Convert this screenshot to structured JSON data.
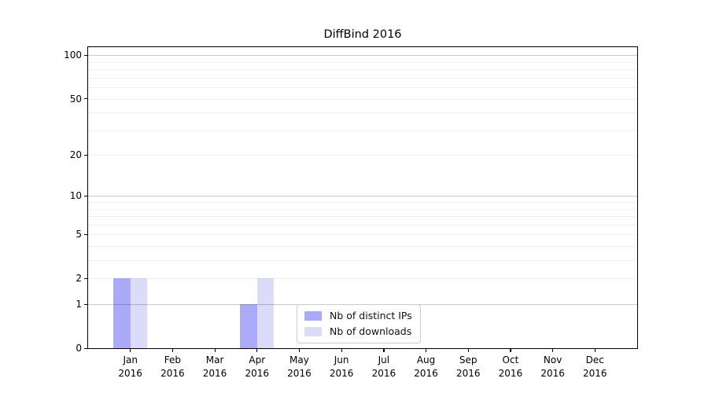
{
  "chart_data": {
    "type": "bar",
    "title": "DiffBind 2016",
    "xlabel": "",
    "ylabel": "",
    "categories": [
      "Jan",
      "Feb",
      "Mar",
      "Apr",
      "May",
      "Jun",
      "Jul",
      "Aug",
      "Sep",
      "Oct",
      "Nov",
      "Dec"
    ],
    "category_year": "2016",
    "series": [
      {
        "name": "Nb of distinct IPs",
        "color": "#aaaaf8",
        "values": [
          2,
          0,
          0,
          1,
          0,
          0,
          0,
          0,
          0,
          0,
          0,
          0
        ]
      },
      {
        "name": "Nb of downloads",
        "color": "#dcdcf8",
        "values": [
          2,
          0,
          0,
          2,
          0,
          0,
          0,
          0,
          0,
          0,
          0,
          0
        ]
      }
    ],
    "yscale": "log1p",
    "ylim": [
      0,
      114
    ],
    "yticks": [
      0,
      1,
      2,
      5,
      10,
      20,
      50,
      100
    ],
    "grid": {
      "on": true,
      "major": [
        1,
        10,
        100
      ],
      "minor": [
        2,
        3,
        4,
        5,
        6,
        7,
        8,
        9,
        20,
        30,
        40,
        50,
        60,
        70,
        80,
        90
      ]
    },
    "legend": {
      "position": "lower center"
    },
    "bar_width_fraction": 0.4
  }
}
